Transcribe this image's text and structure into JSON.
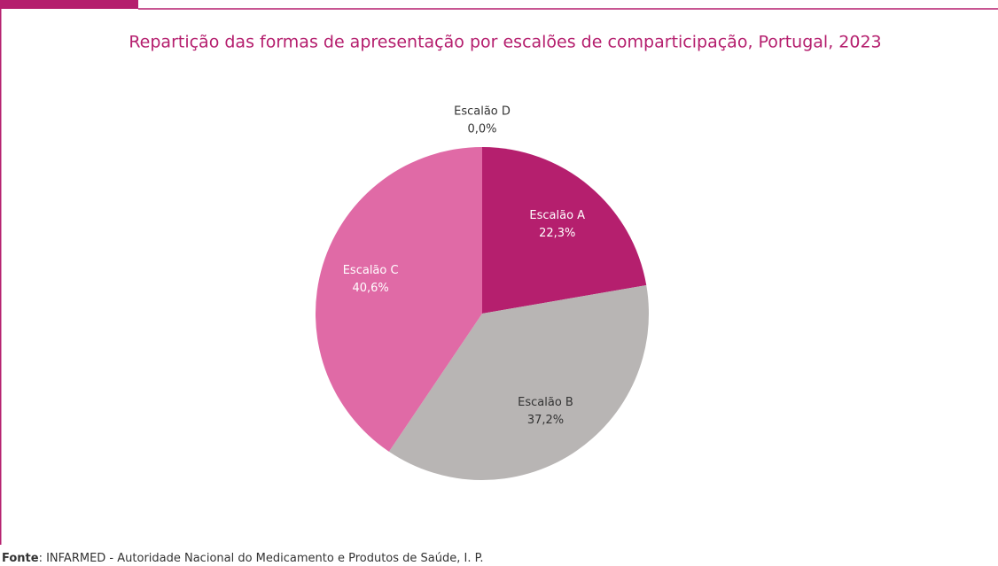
{
  "chart_data": {
    "type": "pie",
    "title": "Repartição das formas de apresentação por escalões de comparticipação, Portugal, 2023",
    "categories": [
      "Escalão A",
      "Escalão B",
      "Escalão C",
      "Escalão D"
    ],
    "values": [
      22.3,
      37.2,
      40.6,
      0.0
    ],
    "value_labels": [
      "22,3%",
      "37,2%",
      "40,6%",
      "0,0%"
    ],
    "colors": [
      "#b51f6e",
      "#b8b5b4",
      "#e06aa6",
      "#7a1048"
    ],
    "source_label": "Fonte",
    "source": ": INFARMED - Autoridade Nacional do Medicamento e Produtos de Saúde, I. P."
  }
}
